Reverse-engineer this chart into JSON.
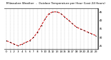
{
  "title": "Milwaukee Weather  -  Outdoor Temperature per Hour (Last 24 Hours)",
  "hours": [
    0,
    1,
    2,
    3,
    4,
    5,
    6,
    7,
    8,
    9,
    10,
    11,
    12,
    13,
    14,
    15,
    16,
    17,
    18,
    19,
    20,
    21,
    22,
    23
  ],
  "temps": [
    28,
    27,
    26,
    25,
    26,
    27,
    28,
    30,
    33,
    37,
    41,
    44,
    45,
    45,
    44,
    42,
    40,
    38,
    36,
    35,
    34,
    33,
    32,
    31
  ],
  "line_color": "#cc0000",
  "marker_color": "#000000",
  "bg_color": "#ffffff",
  "plot_bg": "#ffffff",
  "grid_color": "#aaaaaa",
  "ylim": [
    23,
    47
  ],
  "yticks": [
    25,
    30,
    35,
    40,
    45
  ],
  "title_fontsize": 3.0,
  "axis_fontsize": 2.8,
  "linewidth": 0.7,
  "markersize": 1.5
}
